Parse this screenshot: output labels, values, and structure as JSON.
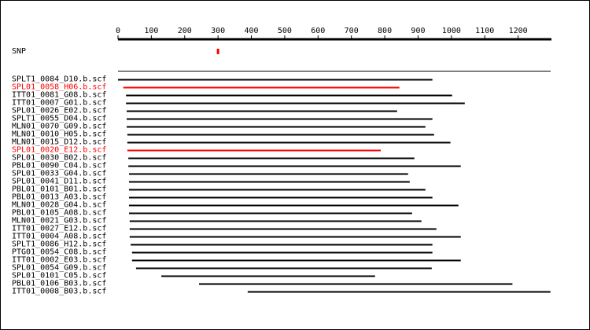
{
  "chart_data": {
    "type": "alignment",
    "xlim": [
      0,
      1300
    ],
    "xticks": [
      0,
      100,
      200,
      300,
      400,
      500,
      600,
      700,
      800,
      900,
      1000,
      1100,
      1200
    ],
    "snp": {
      "label": "SNP",
      "position": 300,
      "color": "#ff0000"
    },
    "reads": [
      {
        "name": "SPLT1_0084_D10.b.scf",
        "start": 0,
        "end": 943,
        "color": "#000000"
      },
      {
        "name": "SPL01_0058_H06.b.scf",
        "start": 16,
        "end": 844,
        "color": "#ff0000"
      },
      {
        "name": "ITT01_0081_G08.b.scf",
        "start": 24,
        "end": 1002,
        "color": "#000000"
      },
      {
        "name": "ITT01_0007_G01.b.scf",
        "start": 24,
        "end": 1040,
        "color": "#000000"
      },
      {
        "name": "SPL01_0026_E02.b.scf",
        "start": 26,
        "end": 837,
        "color": "#000000"
      },
      {
        "name": "SPLT1_0055_D04.b.scf",
        "start": 26,
        "end": 943,
        "color": "#000000"
      },
      {
        "name": "MLN01_0070_G09.b.scf",
        "start": 26,
        "end": 922,
        "color": "#000000"
      },
      {
        "name": "MLN01_0010_H05.b.scf",
        "start": 28,
        "end": 948,
        "color": "#000000"
      },
      {
        "name": "MLN01_0015_D12.b.scf",
        "start": 28,
        "end": 997,
        "color": "#000000"
      },
      {
        "name": "SPL01_0020_E12.b.scf",
        "start": 28,
        "end": 788,
        "color": "#ff0000"
      },
      {
        "name": "SPL01_0030_B02.b.scf",
        "start": 31,
        "end": 889,
        "color": "#000000"
      },
      {
        "name": "PBL01_0090_C04.b.scf",
        "start": 31,
        "end": 1028,
        "color": "#000000"
      },
      {
        "name": "SPL01_0033_G04.b.scf",
        "start": 33,
        "end": 870,
        "color": "#000000"
      },
      {
        "name": "SPL01_0041_D11.b.scf",
        "start": 33,
        "end": 875,
        "color": "#000000"
      },
      {
        "name": "PBL01_0101_B01.b.scf",
        "start": 33,
        "end": 922,
        "color": "#000000"
      },
      {
        "name": "PBL01_0013_A03.b.scf",
        "start": 33,
        "end": 943,
        "color": "#000000"
      },
      {
        "name": "MLN01_0028_G04.b.scf",
        "start": 33,
        "end": 1021,
        "color": "#000000"
      },
      {
        "name": "PBL01_0105_A08.b.scf",
        "start": 33,
        "end": 882,
        "color": "#000000"
      },
      {
        "name": "MLN01_0021_G03.b.scf",
        "start": 35,
        "end": 910,
        "color": "#000000"
      },
      {
        "name": "ITT01_0027_E12.b.scf",
        "start": 35,
        "end": 955,
        "color": "#000000"
      },
      {
        "name": "ITT01_0004_A08.b.scf",
        "start": 35,
        "end": 1028,
        "color": "#000000"
      },
      {
        "name": "SPLT1_0086_H12.b.scf",
        "start": 38,
        "end": 943,
        "color": "#000000"
      },
      {
        "name": "PTG01_0054_C08.b.scf",
        "start": 42,
        "end": 943,
        "color": "#000000"
      },
      {
        "name": "ITT01_0002_E03.b.scf",
        "start": 42,
        "end": 1028,
        "color": "#000000"
      },
      {
        "name": "SPL01_0054_G09.b.scf",
        "start": 54,
        "end": 941,
        "color": "#000000"
      },
      {
        "name": "SPL01_0101_C05.b.scf",
        "start": 130,
        "end": 771,
        "color": "#000000"
      },
      {
        "name": "PBL01_0106_B03.b.scf",
        "start": 243,
        "end": 1183,
        "color": "#000000"
      },
      {
        "name": "ITT01_0008_B03.b.scf",
        "start": 389,
        "end": 1297,
        "color": "#000000"
      }
    ]
  }
}
